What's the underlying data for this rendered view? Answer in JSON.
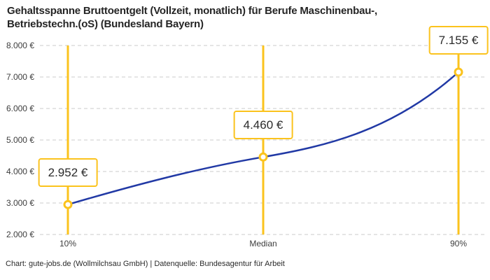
{
  "title_lines": [
    "Gehaltsspanne Bruttoentgelt (Vollzeit, monatlich) für Berufe Maschinenbau-,",
    "Betriebstechn.(oS) (Bundesland Bayern)"
  ],
  "footer": "Chart: gute-jobs.de (Wollmilchsau GmbH) | Datenquelle: Bundesagentur für Arbeit",
  "colors": {
    "accent_yellow": "#fbc31d",
    "line_blue": "#2139a5",
    "grid_gray": "#cbcbcb",
    "text_dark": "#252525",
    "axis_text": "#3d3d3d"
  },
  "chart_data": {
    "type": "line",
    "title": "Gehaltsspanne Bruttoentgelt (Vollzeit, monatlich) für Berufe Maschinenbau-, Betriebstechn.(oS) (Bundesland Bayern)",
    "categories": [
      "10%",
      "Median",
      "90%"
    ],
    "values": [
      2952,
      4460,
      7155
    ],
    "value_labels": [
      "2.952 €",
      "4.460 €",
      "7.155 €"
    ],
    "y_ticks": [
      2000,
      3000,
      4000,
      5000,
      6000,
      7000,
      8000
    ],
    "y_tick_labels": [
      "2.000 €",
      "3.000 €",
      "4.000 €",
      "5.000 €",
      "6.000 €",
      "7.000 €",
      "8.000 €"
    ],
    "ylim": [
      2000,
      8000
    ],
    "y_step": 1000,
    "xlabel": "",
    "ylabel": "",
    "grid": "horizontal-dashed",
    "legend": "none",
    "curve": "smooth",
    "marker": "open-circle",
    "range_guides": "vertical-yellow-lines"
  }
}
